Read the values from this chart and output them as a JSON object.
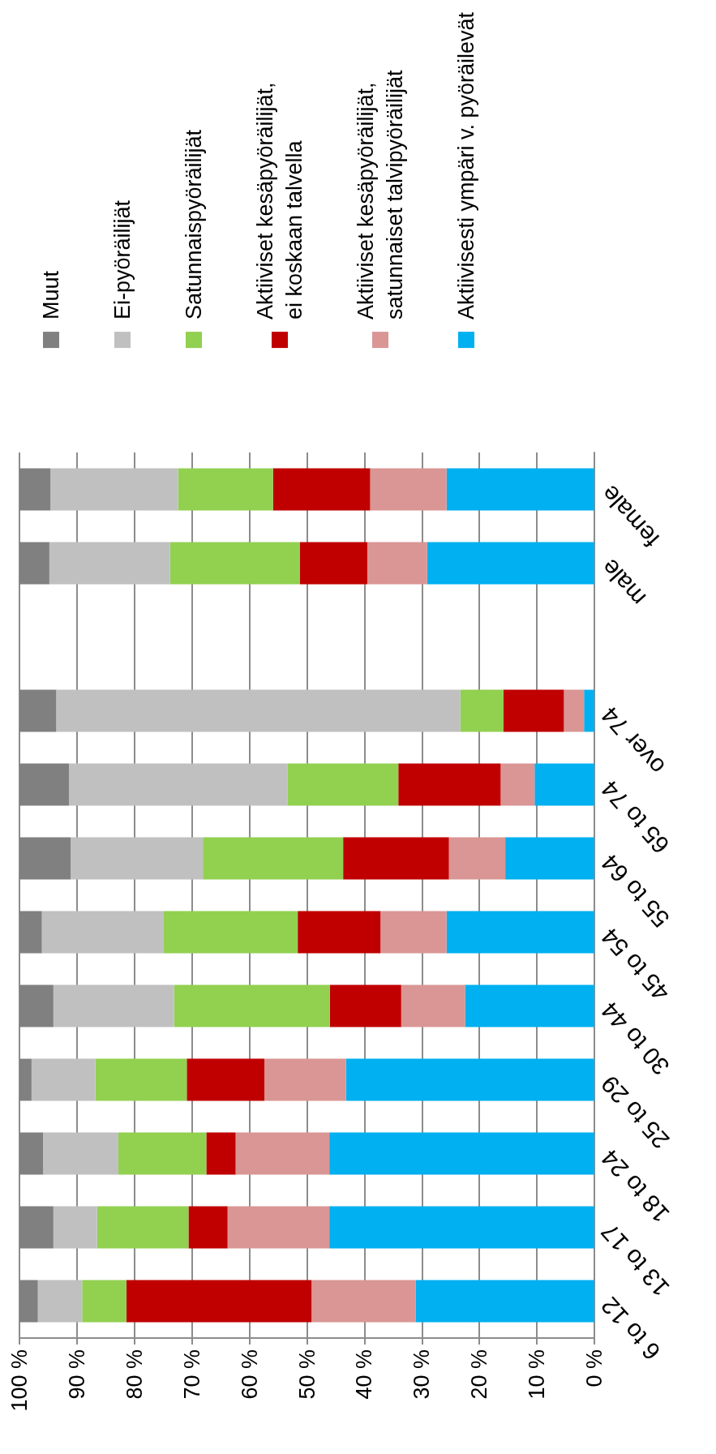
{
  "chart_data": {
    "type": "bar",
    "orientation": "horizontal",
    "stacked": true,
    "categories": [
      "female",
      "male",
      null,
      "over 74",
      "65 to 74",
      "55 to 64",
      "45 to 54",
      "30 to 44",
      "25 to 29",
      "18 to 24",
      "13 to 17",
      "6 to 12"
    ],
    "series": [
      {
        "name": "Aktiivisesti ympäri v. pyöräilevät",
        "color": "#00b0f0",
        "values": [
          25.7,
          29.1,
          null,
          1.8,
          10.4,
          15.5,
          25.7,
          22.5,
          43.2,
          46.1,
          46.1,
          31.1
        ]
      },
      {
        "name": "Aktiiviset kesäpyöräilijät,\nsatunnaiset talvipyöräilijät",
        "color": "#d99694",
        "values": [
          13.3,
          10.4,
          null,
          3.5,
          5.9,
          9.8,
          11.5,
          11.1,
          14.2,
          16.3,
          17.7,
          18.1
        ]
      },
      {
        "name": "Aktiiviset kesäpyöräilijät,\nei koskaan talvella",
        "color": "#c00000",
        "values": [
          16.9,
          11.7,
          null,
          10.5,
          17.8,
          18.4,
          14.4,
          12.4,
          13.5,
          5.1,
          6.8,
          32.2
        ]
      },
      {
        "name": "Satunnaispyöräilijät",
        "color": "#92d050",
        "values": [
          16.5,
          22.6,
          null,
          7.5,
          19.3,
          24.4,
          23.3,
          27.1,
          15.9,
          15.3,
          15.9,
          7.7
        ]
      },
      {
        "name": "Ei-pyöräilijät",
        "color": "#c0c0c0",
        "values": [
          22.2,
          21.0,
          null,
          70.3,
          38.0,
          23.0,
          21.2,
          21.0,
          11.1,
          13.1,
          7.6,
          7.7
        ]
      },
      {
        "name": "Muut",
        "color": "#808080",
        "values": [
          5.4,
          5.2,
          null,
          6.4,
          8.6,
          8.9,
          3.9,
          5.9,
          2.1,
          4.1,
          5.9,
          3.2
        ]
      }
    ],
    "xlim": [
      100,
      0
    ],
    "xticks": [
      {
        "value": 100,
        "label": "100 %"
      },
      {
        "value": 90,
        "label": "90 %"
      },
      {
        "value": 80,
        "label": "80 %"
      },
      {
        "value": 70,
        "label": "70 %"
      },
      {
        "value": 60,
        "label": "60 %"
      },
      {
        "value": 50,
        "label": "50 %"
      },
      {
        "value": 40,
        "label": "40 %"
      },
      {
        "value": 30,
        "label": "30 %"
      },
      {
        "value": 20,
        "label": "20 %"
      },
      {
        "value": 10,
        "label": "10 %"
      },
      {
        "value": 0,
        "label": "0 %"
      }
    ],
    "grid": "x",
    "legend": "top"
  }
}
